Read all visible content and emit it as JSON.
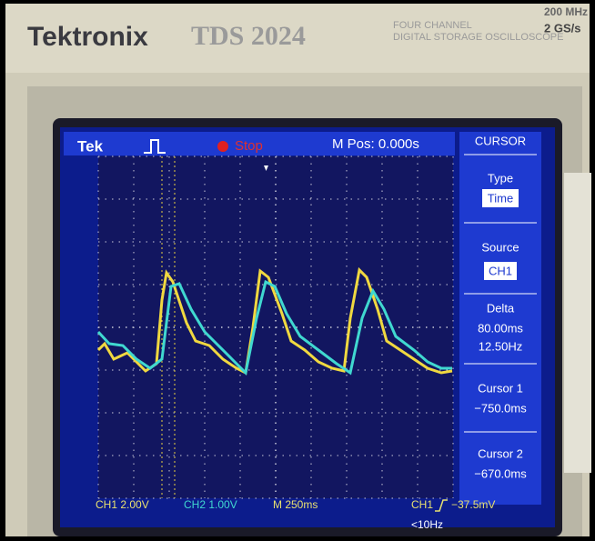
{
  "header": {
    "brand": "Tektronix",
    "model": "TDS 2024",
    "line1": "FOUR CHANNEL",
    "line2": "DIGITAL STORAGE OSCILLOSCOPE",
    "bandwidth": "200 MHz",
    "rate": "2 GS/s"
  },
  "status_bar": {
    "logo": "Tek",
    "run_state": "Stop",
    "position": "M Pos: 0.000s"
  },
  "menu": {
    "title": "CURSOR",
    "type": {
      "label": "Type",
      "value": "Time"
    },
    "source": {
      "label": "Source",
      "value": "CH1"
    },
    "delta": {
      "label": "Delta",
      "time": "80.00ms",
      "freq": "12.50Hz"
    },
    "cursor1": {
      "label": "Cursor 1",
      "value": "−750.0ms"
    },
    "cursor2": {
      "label": "Cursor 2",
      "value": "−670.0ms"
    }
  },
  "footer": {
    "ch1": "CH1 2.00V",
    "ch2": "CH2 1.00V",
    "timebase": "M 250ms",
    "trigger_source": "CH1",
    "trigger_level": "−37.5mV",
    "trigger_freq": "<10Hz"
  }
}
